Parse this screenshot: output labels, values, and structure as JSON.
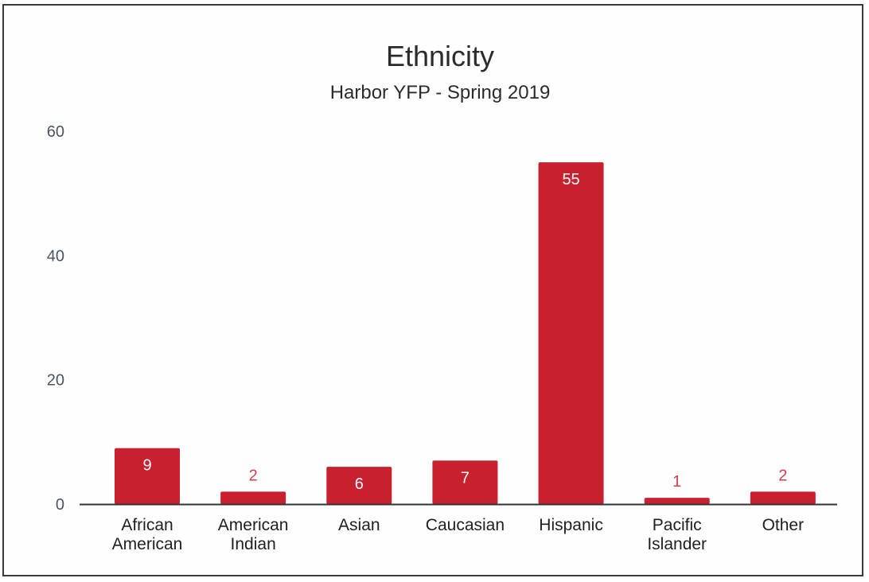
{
  "chart_data": {
    "type": "bar",
    "title": "Ethnicity",
    "subtitle": "Harbor YFP - Spring 2019",
    "xlabel": "",
    "ylabel": "",
    "categories": [
      [
        "African",
        "American"
      ],
      [
        "American",
        "Indian"
      ],
      [
        "Asian"
      ],
      [
        "Caucasian"
      ],
      [
        "Hispanic"
      ],
      [
        "Pacific",
        "Islander"
      ],
      [
        "Other"
      ]
    ],
    "values": [
      9,
      2,
      6,
      7,
      55,
      1,
      2
    ],
    "data_labels": [
      "9",
      "2",
      "6",
      "7",
      "55",
      "1",
      "2"
    ],
    "yticks": [
      "0",
      "20",
      "40",
      "60"
    ],
    "ylim": [
      0,
      60
    ],
    "grid": false,
    "legend": "none",
    "bar_color": "#c8202f",
    "label_inside_color": "#ffffff",
    "label_outside_color": "#d83a4e"
  }
}
